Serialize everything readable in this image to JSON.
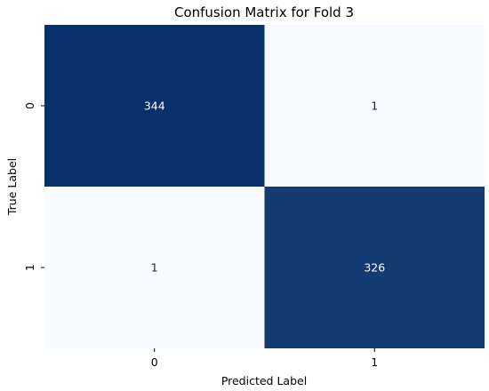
{
  "chart_data": {
    "type": "heatmap",
    "title": "Confusion Matrix for Fold 3",
    "xlabel": "Predicted Label",
    "ylabel": "True Label",
    "x_categories": [
      "0",
      "1"
    ],
    "y_categories": [
      "0",
      "1"
    ],
    "values": [
      [
        344,
        1
      ],
      [
        1,
        326
      ]
    ],
    "colormap": "Blues",
    "colorbar": false,
    "colors": {
      "low": "#f7fbff",
      "high": "#08306b",
      "text_on_dark": "#ffffff",
      "text_on_light": "#262626"
    }
  }
}
